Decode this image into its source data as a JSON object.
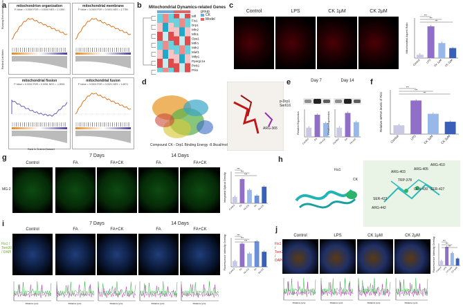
{
  "panels": {
    "a": "a",
    "b": "b",
    "c": "c",
    "d": "d",
    "e": "e",
    "f": "f",
    "g": "g",
    "h": "h",
    "i": "i",
    "j": "j"
  },
  "a": {
    "plots": [
      {
        "title": "mitochondrion organization",
        "stats": "P Value = 0.0000 FDR = 0.0000 NES = 2.1390"
      },
      {
        "title": "mitochondrial membrane",
        "stats": "P Value = 0.0000 FDR = 0.0001 NES = 1.7780"
      },
      {
        "title": "mitochondrial fission",
        "stats": "P Value = 0.0002 FDR = 0.0051 NES = -1.8901"
      },
      {
        "title": "mitochondrial fusion",
        "stats": "P Value = 0.0001 FDR = 0.0021 NES = 1.6871"
      }
    ],
    "ylabel_top": "Running Enrichment Score",
    "ylabel_bottom": "Ranked List Metric",
    "xlabel": "Rank in Ordered Dataset"
  },
  "b": {
    "title": "Mitochondrial Dynamics-related Genes",
    "legend_title": "group",
    "legend": [
      "CK",
      "Model"
    ],
    "genes": [
      "Mff",
      "Fis1",
      "Drp1",
      "Mfn2",
      "Mfn1",
      "Opa1",
      "Mtfr1",
      "Mtfr2",
      "Mief1",
      "Mtfp1",
      "Ppargc1a",
      "Pink1",
      "Prkn"
    ]
  },
  "c": {
    "labels": [
      "Control",
      "LPS",
      "CK 1μM",
      "CK 2μM"
    ],
    "chart_ylabel": "Mitochondrial Aspect Ratio",
    "chart_data": {
      "type": "bar",
      "categories": [
        "Control",
        "LPS",
        "CK 1μM",
        "CK 2μM"
      ],
      "values": [
        1.0,
        9.5,
        4.5,
        3.0
      ],
      "ylim": [
        0,
        12
      ],
      "colors": [
        "#c9c9e6",
        "#8f6fc7",
        "#98b8ea",
        "#3a5fb8"
      ],
      "annotations": [
        "***",
        "***",
        "***"
      ]
    }
  },
  "d": {
    "caption": "Compound CK - Drp1  Binding Energy  -8.9kcal/mol",
    "residue": "ARG-365"
  },
  "e": {
    "day7": "Day 7",
    "day14": "Day 14",
    "lanes": [
      "Control",
      "FA",
      "FA+CK"
    ],
    "protein": "p-Drp1 Ser616",
    "ylabel": "Relative Expression",
    "chart_data": [
      {
        "type": "bar",
        "categories": [
          "Control",
          "FA",
          "FA+CK"
        ],
        "values": [
          1.0,
          2.4,
          1.5
        ],
        "ylim": [
          0,
          3
        ]
      },
      {
        "type": "bar",
        "categories": [
          "Control",
          "FA",
          "FA+CK"
        ],
        "values": [
          1.0,
          2.6,
          1.6
        ],
        "ylim": [
          0,
          3
        ]
      }
    ]
  },
  "f": {
    "ylabel": "Relative mRNA levels of Fis1",
    "chart_data": {
      "type": "bar",
      "categories": [
        "Control",
        "LPS",
        "CK 1μM",
        "CK 2μM"
      ],
      "values": [
        1.0,
        3.8,
        2.3,
        1.4
      ],
      "ylim": [
        0,
        5
      ],
      "colors": [
        "#c9c9e6",
        "#8f6fc7",
        "#98b8ea",
        "#3a5fb8"
      ],
      "annotations": [
        "***",
        "***",
        "***"
      ]
    }
  },
  "g": {
    "day7": "7 Days",
    "day14": "14 Days",
    "labels": [
      "Control",
      "FA",
      "FA+CK",
      "FA",
      "FA+CK"
    ],
    "row_label": "MG-2",
    "ylabel": "Integrated Optical Density",
    "chart_data": {
      "type": "bar",
      "categories": [
        "Control",
        "FA",
        "FA+CK",
        "FA",
        "FA+CK"
      ],
      "values": [
        1.0,
        3.8,
        2.1,
        1.2,
        2.6
      ],
      "ylim": [
        0,
        5
      ],
      "colors": [
        "#c9c9e6",
        "#8f6fc7",
        "#98b8ea",
        "#6a8fd6",
        "#3a5fb8"
      ],
      "annotations": [
        "***",
        "***",
        "***"
      ]
    }
  },
  "h": {
    "labels": [
      "Fis1",
      "CK"
    ],
    "residues": [
      "ARG-403",
      "ARG-405",
      "ARG-410",
      "TRP-378",
      "GLN-430",
      "SER-422",
      "ARG-442",
      "SER-427"
    ]
  },
  "i": {
    "day7": "7 Days",
    "day14": "14 Days",
    "labels": [
      "Control",
      "FA",
      "FA+CK",
      "FA",
      "FA+CK"
    ],
    "row_label": "Fis1 / Tom20 / DAPI",
    "ylabel": "Fluorescence Intensity Overlap",
    "chart_data": {
      "type": "bar",
      "categories": [
        "Control",
        "FA",
        "FA+CK",
        "FA",
        "FA+CK"
      ],
      "values": [
        1.0,
        4.0,
        2.3,
        4.4,
        2.6
      ],
      "ylim": [
        0,
        5
      ],
      "colors": [
        "#c9c9e6",
        "#8f6fc7",
        "#98b8ea",
        "#6a8fd6",
        "#3a5fb8"
      ],
      "annotations": [
        "***",
        "***",
        "***"
      ]
    },
    "trace_xlabel": "Distance (µm)"
  },
  "j": {
    "labels": [
      "Control",
      "LPS",
      "CK 1μM",
      "CK 2μM"
    ],
    "row_label": "Fis1 / Tom20 / DAPI",
    "ylabel": "Fluorescence Intensity Overlap",
    "chart_data": {
      "type": "bar",
      "categories": [
        "Control",
        "LPS",
        "CK 1μM",
        "CK 2μM"
      ],
      "values": [
        1.0,
        4.2,
        2.8,
        1.6
      ],
      "ylim": [
        0,
        5
      ],
      "colors": [
        "#c9c9e6",
        "#8f6fc7",
        "#98b8ea",
        "#3a5fb8"
      ],
      "annotations": [
        "***",
        "***",
        "***"
      ]
    },
    "trace_xlabel": "Distance (µm)"
  }
}
